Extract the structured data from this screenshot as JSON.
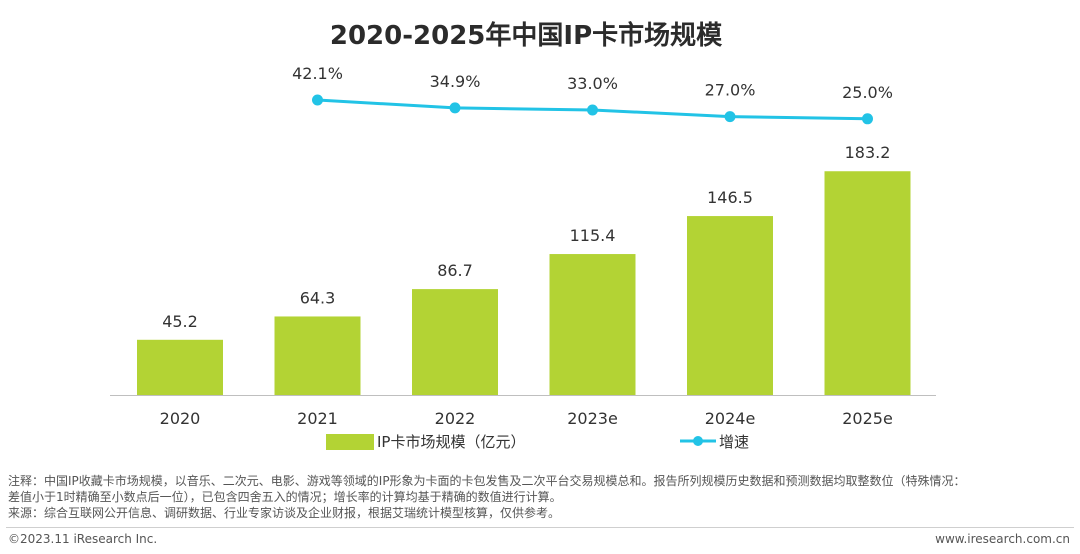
{
  "chart_data": {
    "type": "bar",
    "title": "2020-2025年中国IP卡市场规模",
    "categories": [
      "2020",
      "2021",
      "2022",
      "2023e",
      "2024e",
      "2025e"
    ],
    "series": [
      {
        "name": "IP卡市场规模（亿元）",
        "type": "bar",
        "values": [
          45.2,
          64.3,
          86.7,
          115.4,
          146.5,
          183.2
        ],
        "labels": [
          "45.2",
          "64.3",
          "86.7",
          "115.4",
          "146.5",
          "183.2"
        ],
        "color": "#b3d334"
      },
      {
        "name": "增速",
        "type": "line",
        "x": [
          "2021",
          "2022",
          "2023e",
          "2024e",
          "2025e"
        ],
        "values": [
          42.1,
          34.9,
          33.0,
          27.0,
          25.0
        ],
        "labels": [
          "42.1%",
          "34.9%",
          "33.0%",
          "27.0%",
          "25.0%"
        ],
        "color": "#22c3e6"
      }
    ],
    "legend_position": "bottom",
    "grid": false
  },
  "notes": {
    "line1": "注释：中国IP收藏卡市场规模，以音乐、二次元、电影、游戏等领域的IP形象为卡面的卡包发售及二次平台交易规模总和。报告所列规模历史数据和预测数据均取整数位（特殊情况：",
    "line2": "差值小于1时精确至小数点后一位），已包含四舍五入的情况；增长率的计算均基于精确的数值进行计算。",
    "line3": "来源：综合互联网公开信息、调研数据、行业专家访谈及企业财报，根据艾瑞统计模型核算，仅供参考。"
  },
  "footer": {
    "copyright": "©2023.11 iResearch Inc.",
    "website": "www.iresearch.com.cn"
  }
}
